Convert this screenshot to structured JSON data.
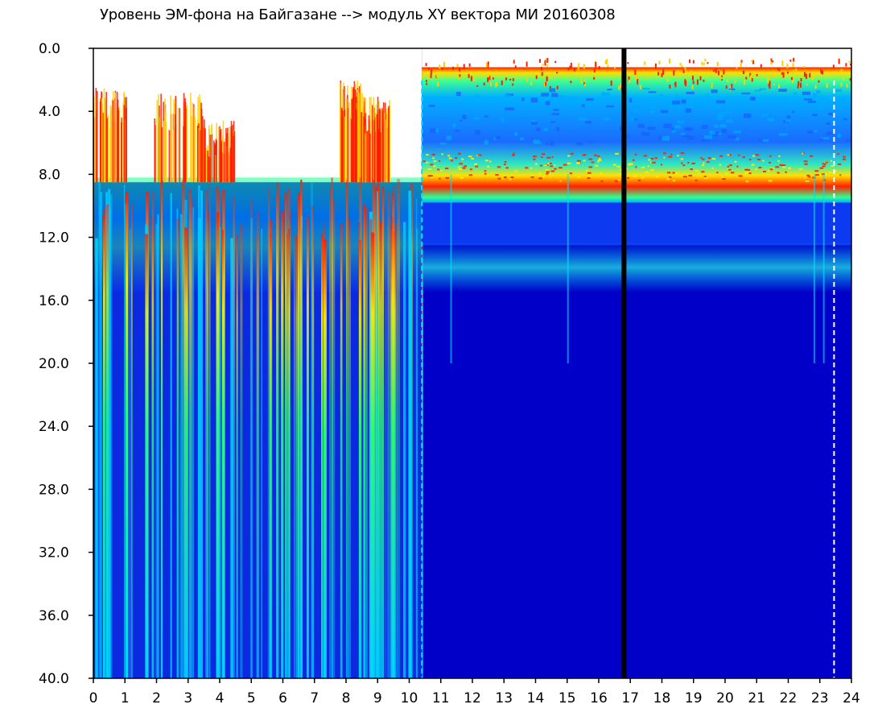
{
  "chart_data": {
    "type": "heatmap",
    "title": "Уровень ЭМ-фона на Байгазане  --> модуль XY вектора МИ  20160308",
    "xlabel": "",
    "ylabel": "",
    "xlim": [
      0,
      24
    ],
    "ylim": [
      0,
      40
    ],
    "y_inverted": true,
    "x_ticks": [
      "0",
      "1",
      "2",
      "3",
      "4",
      "5",
      "6",
      "7",
      "8",
      "9",
      "10",
      "11",
      "12",
      "13",
      "14",
      "15",
      "16",
      "17",
      "18",
      "19",
      "20",
      "21",
      "22",
      "23",
      "24"
    ],
    "y_ticks": [
      "0.0",
      "4.0",
      "8.0",
      "12.0",
      "16.0",
      "20.0",
      "24.0",
      "28.0",
      "32.0",
      "36.0",
      "40.0"
    ],
    "colormap": [
      "#0000c8",
      "#0050ff",
      "#00c8ff",
      "#00ff80",
      "#ffff00",
      "#ff0000"
    ],
    "background_color": "#0000c8",
    "markers": [
      {
        "x": 16.8,
        "style": "solid",
        "color": "#000000"
      },
      {
        "x": 23.45,
        "style": "dashed",
        "color": "#ffffff"
      },
      {
        "x": 10.4,
        "style": "dashed",
        "color": "#00e0ff"
      }
    ]
  }
}
